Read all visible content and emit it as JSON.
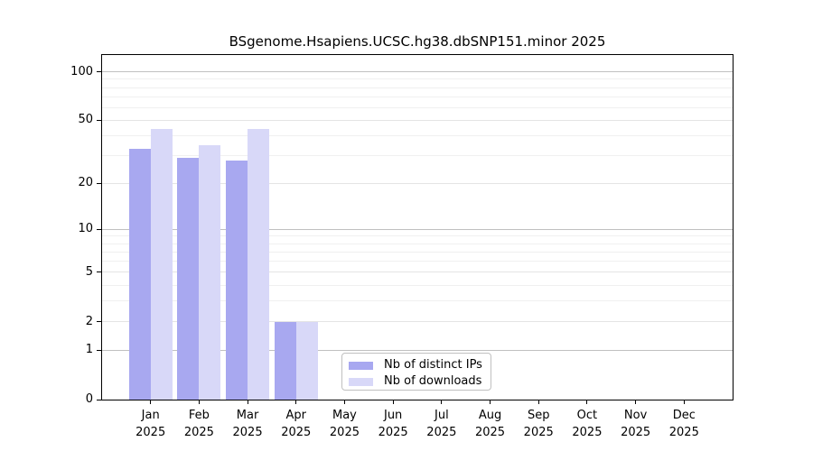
{
  "page": {
    "background": "#ffffff"
  },
  "chart_data": {
    "type": "bar",
    "title": "BSgenome.Hsapiens.UCSC.hg38.dbSNP151.minor 2025",
    "categories": [
      "Jan",
      "Feb",
      "Mar",
      "Apr",
      "May",
      "Jun",
      "Jul",
      "Aug",
      "Sep",
      "Oct",
      "Nov",
      "Dec"
    ],
    "year_label": "2025",
    "series": [
      {
        "name": "Nb of distinct IPs",
        "color": "#a8a8f0",
        "values": [
          33,
          29,
          28,
          2,
          0,
          0,
          0,
          0,
          0,
          0,
          0,
          0
        ]
      },
      {
        "name": "Nb of downloads",
        "color": "#d8d8f8",
        "values": [
          44,
          35,
          44,
          2,
          0,
          0,
          0,
          0,
          0,
          0,
          0,
          0
        ]
      }
    ],
    "xlabel": "",
    "ylabel": "",
    "yscale": "log1p",
    "ylim": [
      0,
      127
    ],
    "y_ticks": [
      {
        "value": 0,
        "label": "0"
      },
      {
        "value": 1,
        "label": "1"
      },
      {
        "value": 2,
        "label": "2"
      },
      {
        "value": 5,
        "label": "5"
      },
      {
        "value": 10,
        "label": "10"
      },
      {
        "value": 20,
        "label": "20"
      },
      {
        "value": 50,
        "label": "50"
      },
      {
        "value": 100,
        "label": "100"
      }
    ],
    "y_minor_ticks": [
      3,
      4,
      6,
      7,
      8,
      9,
      30,
      40,
      60,
      70,
      80,
      90
    ],
    "y_grid_emphasis": [
      1,
      10,
      100
    ],
    "grid": true,
    "legend_position": "bottom-center-inside"
  },
  "colors": {
    "axis": "#000000",
    "grid_major": "#c0c0c0",
    "grid_mid": "#e4e4e4",
    "grid_minor": "#f0f0f0",
    "legend_border": "#c0c0c0",
    "text": "#000000"
  }
}
